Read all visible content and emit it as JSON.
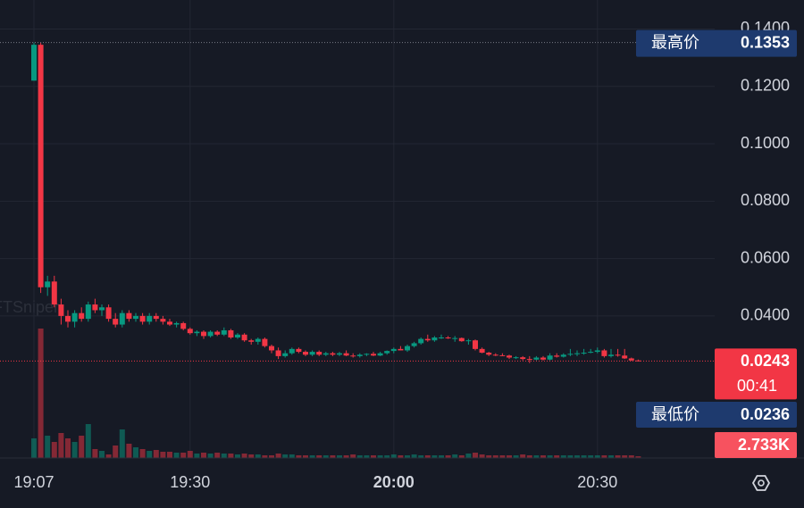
{
  "chart_data": {
    "type": "candlestick",
    "watermark": "FTSniper",
    "x": [
      "19:07",
      "19:08",
      "19:09",
      "19:10",
      "19:11",
      "19:12",
      "19:13",
      "19:14",
      "19:15",
      "19:16",
      "19:17",
      "19:18",
      "19:19",
      "19:20",
      "19:21",
      "19:22",
      "19:23",
      "19:24",
      "19:25",
      "19:26",
      "19:27",
      "19:28",
      "19:29",
      "19:30",
      "19:31",
      "19:32",
      "19:33",
      "19:34",
      "19:35",
      "19:36",
      "19:37",
      "19:38",
      "19:39",
      "19:40",
      "19:41",
      "19:42",
      "19:43",
      "19:44",
      "19:45",
      "19:46",
      "19:47",
      "19:48",
      "19:49",
      "19:50",
      "19:51",
      "19:52",
      "19:53",
      "19:54",
      "19:55",
      "19:56",
      "19:57",
      "19:58",
      "19:59",
      "20:00",
      "20:01",
      "20:02",
      "20:03",
      "20:04",
      "20:05",
      "20:06",
      "20:07",
      "20:08",
      "20:09",
      "20:10",
      "20:11",
      "20:12",
      "20:13",
      "20:14",
      "20:15",
      "20:16",
      "20:17",
      "20:18",
      "20:19",
      "20:20",
      "20:21",
      "20:22",
      "20:23",
      "20:24",
      "20:25",
      "20:26",
      "20:27",
      "20:28",
      "20:29",
      "20:30",
      "20:31",
      "20:32",
      "20:33",
      "20:34",
      "20:35",
      "20:36"
    ],
    "open": [
      0.122,
      0.1345,
      0.05,
      0.052,
      0.044,
      0.04,
      0.038,
      0.041,
      0.039,
      0.044,
      0.042,
      0.043,
      0.039,
      0.037,
      0.041,
      0.039,
      0.04,
      0.038,
      0.04,
      0.039,
      0.038,
      0.037,
      0.0375,
      0.0355,
      0.034,
      0.0345,
      0.033,
      0.0345,
      0.0335,
      0.035,
      0.0325,
      0.0335,
      0.0315,
      0.031,
      0.032,
      0.0295,
      0.028,
      0.026,
      0.027,
      0.0285,
      0.0275,
      0.0265,
      0.0275,
      0.0265,
      0.027,
      0.0265,
      0.027,
      0.0262,
      0.026,
      0.0265,
      0.0268,
      0.0262,
      0.027,
      0.0278,
      0.0285,
      0.028,
      0.0295,
      0.0305,
      0.032,
      0.0315,
      0.0325,
      0.0325,
      0.0322,
      0.0323,
      0.0312,
      0.0315,
      0.0285,
      0.0272,
      0.0265,
      0.0263,
      0.0262,
      0.0255,
      0.0256,
      0.025,
      0.0248,
      0.0255,
      0.0248,
      0.0262,
      0.0258,
      0.0265,
      0.0268,
      0.027,
      0.0272,
      0.0275,
      0.028,
      0.026,
      0.0265,
      0.0262,
      0.0252,
      0.0245
    ],
    "high": [
      0.1353,
      0.1353,
      0.054,
      0.054,
      0.046,
      0.042,
      0.042,
      0.043,
      0.045,
      0.046,
      0.044,
      0.044,
      0.041,
      0.042,
      0.042,
      0.041,
      0.041,
      0.041,
      0.041,
      0.04,
      0.039,
      0.038,
      0.038,
      0.036,
      0.035,
      0.035,
      0.035,
      0.035,
      0.036,
      0.0355,
      0.034,
      0.034,
      0.032,
      0.0325,
      0.0325,
      0.03,
      0.029,
      0.028,
      0.029,
      0.029,
      0.028,
      0.028,
      0.028,
      0.0275,
      0.0275,
      0.0275,
      0.028,
      0.027,
      0.027,
      0.027,
      0.0275,
      0.0275,
      0.028,
      0.029,
      0.0295,
      0.03,
      0.031,
      0.0325,
      0.0335,
      0.033,
      0.0335,
      0.033,
      0.033,
      0.0325,
      0.032,
      0.0318,
      0.029,
      0.0275,
      0.027,
      0.027,
      0.0265,
      0.026,
      0.026,
      0.026,
      0.026,
      0.026,
      0.027,
      0.027,
      0.027,
      0.0285,
      0.028,
      0.0285,
      0.0285,
      0.029,
      0.0285,
      0.0285,
      0.0285,
      0.0285,
      0.0255,
      0.0248
    ],
    "low": [
      0.122,
      0.048,
      0.047,
      0.043,
      0.037,
      0.036,
      0.036,
      0.038,
      0.038,
      0.041,
      0.04,
      0.038,
      0.036,
      0.036,
      0.038,
      0.038,
      0.037,
      0.037,
      0.038,
      0.037,
      0.0365,
      0.036,
      0.035,
      0.0335,
      0.033,
      0.032,
      0.0325,
      0.033,
      0.033,
      0.032,
      0.032,
      0.031,
      0.03,
      0.03,
      0.029,
      0.027,
      0.025,
      0.0255,
      0.0265,
      0.027,
      0.026,
      0.026,
      0.026,
      0.026,
      0.026,
      0.026,
      0.026,
      0.0255,
      0.0255,
      0.026,
      0.026,
      0.026,
      0.0265,
      0.027,
      0.028,
      0.0275,
      0.029,
      0.03,
      0.031,
      0.031,
      0.032,
      0.032,
      0.031,
      0.031,
      0.03,
      0.028,
      0.027,
      0.026,
      0.026,
      0.026,
      0.025,
      0.025,
      0.0245,
      0.0236,
      0.0245,
      0.0245,
      0.0245,
      0.0255,
      0.0255,
      0.026,
      0.026,
      0.0265,
      0.027,
      0.027,
      0.0255,
      0.0255,
      0.0258,
      0.025,
      0.0243,
      0.0243
    ],
    "close": [
      0.1345,
      0.05,
      0.052,
      0.044,
      0.04,
      0.038,
      0.041,
      0.039,
      0.044,
      0.042,
      0.043,
      0.039,
      0.037,
      0.041,
      0.039,
      0.04,
      0.038,
      0.04,
      0.039,
      0.038,
      0.037,
      0.0375,
      0.0355,
      0.034,
      0.0345,
      0.033,
      0.0345,
      0.0335,
      0.035,
      0.0325,
      0.0335,
      0.0315,
      0.031,
      0.032,
      0.0295,
      0.028,
      0.026,
      0.027,
      0.0285,
      0.0275,
      0.0265,
      0.0275,
      0.0265,
      0.027,
      0.0265,
      0.027,
      0.0262,
      0.026,
      0.0265,
      0.0268,
      0.0262,
      0.027,
      0.0278,
      0.0285,
      0.028,
      0.0295,
      0.0305,
      0.032,
      0.0315,
      0.0325,
      0.0325,
      0.0322,
      0.0323,
      0.0312,
      0.0315,
      0.0285,
      0.0272,
      0.0265,
      0.0263,
      0.0262,
      0.0255,
      0.0256,
      0.025,
      0.0248,
      0.0255,
      0.0248,
      0.0262,
      0.0258,
      0.0265,
      0.0268,
      0.027,
      0.0272,
      0.0275,
      0.028,
      0.026,
      0.0265,
      0.0262,
      0.0252,
      0.0245,
      0.0243
    ],
    "volume": [
      30800,
      203000,
      35000,
      25200,
      39200,
      30800,
      25200,
      35000,
      53200,
      14000,
      11200,
      5600,
      19600,
      44800,
      22400,
      16800,
      14000,
      11200,
      12600,
      9800,
      9800,
      8400,
      8400,
      11200,
      7000,
      8400,
      7000,
      8400,
      7000,
      7000,
      5600,
      7000,
      5600,
      5600,
      4200,
      4200,
      7000,
      5600,
      5600,
      4200,
      4200,
      4200,
      4200,
      4200,
      4200,
      4200,
      4200,
      5600,
      4200,
      4200,
      4200,
      4200,
      4200,
      5600,
      4200,
      4200,
      5600,
      4200,
      4200,
      4200,
      4200,
      4200,
      5600,
      4200,
      7000,
      8400,
      5600,
      4200,
      4200,
      4200,
      4200,
      4200,
      5600,
      4200,
      4200,
      4200,
      4200,
      4200,
      4200,
      4200,
      4200,
      4200,
      4200,
      4200,
      4200,
      4200,
      4200,
      4200,
      4200,
      2733
    ],
    "up_color": "#089981",
    "down_color": "#f23645",
    "ylim": [
      -0.0095,
      0.1501
    ],
    "yticks": [
      {
        "value": 0.04,
        "label": "0.0400"
      },
      {
        "value": 0.06,
        "label": "0.0600"
      },
      {
        "value": 0.08,
        "label": "0.0800"
      },
      {
        "value": 0.1,
        "label": "0.1000"
      },
      {
        "value": 0.12,
        "label": "0.1200"
      },
      {
        "value": 0.14,
        "label": "0.1400"
      }
    ],
    "grid": true,
    "high_label": "最高价",
    "high_value": 0.1353,
    "low_label": "最低价",
    "low_value": 0.0236,
    "last_price": 0.0243,
    "countdown": "00:41",
    "last_volume": 2733,
    "last_volume_label": "2.733K"
  }
}
